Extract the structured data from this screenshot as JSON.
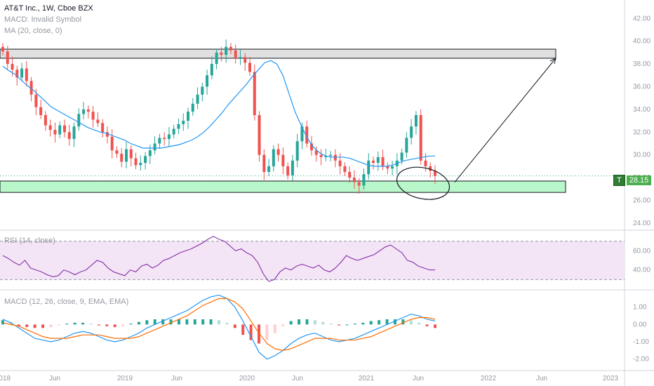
{
  "legend": {
    "title": "AT&T Inc., 1W, Cboe BZX",
    "macd_invalid": "MACD: Invalid Symbol",
    "ma": "MA (20, close, 0)"
  },
  "rsi_label": "RSI (14, close)",
  "macd_label": "MACD (12, 26, close, 9, EMA, EMA)",
  "price_tag": {
    "symbol": "T",
    "value": "28.15"
  },
  "colors": {
    "up": "#26a69a",
    "down": "#ef5350",
    "ma": "#2196f3",
    "rsi": "#7b1fa2",
    "rsi_band": "#f3e5f5",
    "macd": "#2196f3",
    "signal": "#ff6d00",
    "resistance_zone": "#e0e0e0",
    "support_zone": "#b9f6ca"
  },
  "chart_data": [
    {
      "type": "candlestick",
      "title": "AT&T Inc., 1W, Cboe BZX",
      "ylim": [
        23.5,
        43.5
      ],
      "y_ticks": [
        "42.00",
        "40.00",
        "38.00",
        "36.00",
        "34.00",
        "32.00",
        "30.00",
        "28.00",
        "26.00",
        "24.00"
      ],
      "x_ticks": [
        "2018",
        "Jun",
        "2019",
        "Jun",
        "2020",
        "Jun",
        "2021",
        "Jun",
        "2022",
        "Jun",
        "2023"
      ],
      "close_path": [
        39.1,
        38.0,
        37.5,
        36.8,
        37.6,
        36.5,
        35.3,
        34.2,
        33.5,
        32.6,
        32.2,
        31.8,
        32.6,
        32.0,
        31.4,
        32.5,
        33.6,
        34.0,
        33.8,
        33.1,
        32.8,
        32.0,
        31.6,
        30.4,
        30.1,
        29.4,
        30.5,
        29.7,
        29.1,
        29.3,
        29.9,
        30.4,
        31.0,
        31.5,
        31.4,
        31.8,
        32.3,
        32.7,
        33.0,
        33.8,
        34.5,
        35.3,
        36.0,
        37.0,
        38.0,
        39.0,
        38.8,
        39.5,
        39.2,
        38.5,
        38.6,
        38.1,
        37.3,
        33.5,
        30.0,
        28.5,
        29.0,
        30.5,
        30.0,
        29.0,
        28.2,
        29.5,
        31.2,
        32.5,
        31.0,
        30.4,
        30.0,
        29.8,
        29.9,
        30.0,
        29.5,
        29.0,
        28.5,
        28.0,
        27.6,
        27.3,
        28.3,
        29.5,
        29.3,
        29.8,
        29.0,
        28.8,
        29.0,
        29.5,
        30.2,
        31.5,
        32.5,
        33.5,
        29.5,
        29.0,
        28.6,
        28.15
      ],
      "ma_path": [
        37.8,
        37.4,
        37.1,
        36.6,
        36.1,
        35.7,
        35.2,
        34.7,
        34.2,
        33.9,
        33.6,
        33.3,
        33.0,
        32.7,
        32.4,
        32.2,
        32.0,
        31.9,
        31.7,
        31.5,
        31.3,
        31.0,
        30.8,
        30.6,
        30.6,
        30.6,
        30.6,
        30.7,
        30.8,
        30.9,
        31.1,
        31.3,
        31.6,
        32.0,
        32.5,
        33.1,
        33.7,
        34.4,
        35.0,
        35.6,
        36.2,
        36.9,
        37.5,
        38.1,
        38.3,
        38.0,
        37.0,
        35.4,
        33.8,
        32.6,
        31.5,
        30.7,
        30.2,
        29.9,
        29.8,
        29.8,
        29.8,
        29.7,
        29.5,
        29.3,
        29.1,
        29.0,
        29.0,
        29.0,
        29.1,
        29.3,
        29.5,
        29.6,
        29.7,
        29.8,
        29.9,
        29.9
      ],
      "resistance_zone": [
        38.5,
        39.3
      ],
      "support_zone": [
        26.7,
        27.7
      ],
      "last_price": 28.15,
      "projection_target": 38.5
    },
    {
      "type": "line",
      "title": "RSI (14, close)",
      "ylim": [
        20,
        80
      ],
      "y_ticks": [
        "60.00",
        "40.00"
      ],
      "upper_band": 70,
      "lower_band": 30,
      "values": [
        55,
        52,
        48,
        45,
        50,
        42,
        40,
        38,
        35,
        33,
        34,
        40,
        38,
        35,
        38,
        40,
        45,
        50,
        48,
        42,
        38,
        36,
        34,
        40,
        38,
        44,
        46,
        42,
        45,
        50,
        52,
        55,
        58,
        60,
        62,
        65,
        68,
        72,
        75,
        72,
        70,
        65,
        60,
        62,
        58,
        55,
        48,
        36,
        28,
        30,
        38,
        42,
        40,
        44,
        46,
        44,
        42,
        45,
        40,
        38,
        42,
        48,
        55,
        52,
        50,
        52,
        54,
        56,
        60,
        64,
        66,
        62,
        58,
        50,
        48,
        44,
        42,
        40,
        40
      ]
    },
    {
      "type": "bar+line",
      "title": "MACD (12, 26, close, 9, EMA, EMA)",
      "ylim": [
        -2.5,
        1.8
      ],
      "y_ticks": [
        "1.00",
        "0.00",
        "-1.00",
        "-2.00"
      ],
      "macd": [
        0.3,
        0.1,
        -0.2,
        -0.5,
        -0.8,
        -0.9,
        -1.0,
        -0.9,
        -0.7,
        -0.5,
        -0.4,
        -0.5,
        -0.7,
        -0.9,
        -1.0,
        -0.9,
        -0.7,
        -0.5,
        -0.2,
        0.0,
        0.2,
        0.4,
        0.6,
        0.8,
        1.1,
        1.4,
        1.6,
        1.7,
        1.5,
        1.0,
        0.2,
        -0.7,
        -1.6,
        -2.0,
        -1.8,
        -1.5,
        -1.1,
        -0.8,
        -0.6,
        -0.5,
        -0.7,
        -0.9,
        -1.0,
        -0.9,
        -0.8,
        -0.6,
        -0.4,
        -0.2,
        0.0,
        0.2,
        0.4,
        0.6,
        0.5,
        0.3,
        0.2
      ],
      "signal": [
        0.1,
        0.0,
        -0.1,
        -0.3,
        -0.5,
        -0.7,
        -0.8,
        -0.8,
        -0.8,
        -0.7,
        -0.6,
        -0.6,
        -0.6,
        -0.7,
        -0.8,
        -0.8,
        -0.8,
        -0.7,
        -0.5,
        -0.3,
        -0.1,
        0.1,
        0.3,
        0.5,
        0.8,
        1.1,
        1.3,
        1.5,
        1.5,
        1.3,
        0.9,
        0.2,
        -0.5,
        -1.1,
        -1.4,
        -1.5,
        -1.4,
        -1.2,
        -1.0,
        -0.8,
        -0.8,
        -0.8,
        -0.9,
        -0.9,
        -0.9,
        -0.8,
        -0.7,
        -0.5,
        -0.3,
        -0.1,
        0.1,
        0.3,
        0.4,
        0.4,
        0.3
      ],
      "histogram": [
        0.25,
        0.15,
        -0.1,
        -0.15,
        -0.2,
        -0.2,
        -0.15,
        -0.05,
        0.05,
        0.1,
        0.1,
        0.05,
        -0.05,
        -0.1,
        -0.15,
        -0.1,
        0.05,
        0.15,
        0.25,
        0.3,
        0.3,
        0.3,
        0.3,
        0.3,
        0.3,
        0.3,
        0.3,
        0.25,
        0.1,
        -0.2,
        -0.6,
        -0.9,
        -1.1,
        -0.9,
        -0.5,
        -0.1,
        0.2,
        0.3,
        0.3,
        0.25,
        0.15,
        0.05,
        -0.05,
        0.0,
        0.05,
        0.1,
        0.2,
        0.25,
        0.3,
        0.3,
        0.3,
        0.25,
        0.1,
        -0.1,
        -0.2
      ]
    }
  ]
}
